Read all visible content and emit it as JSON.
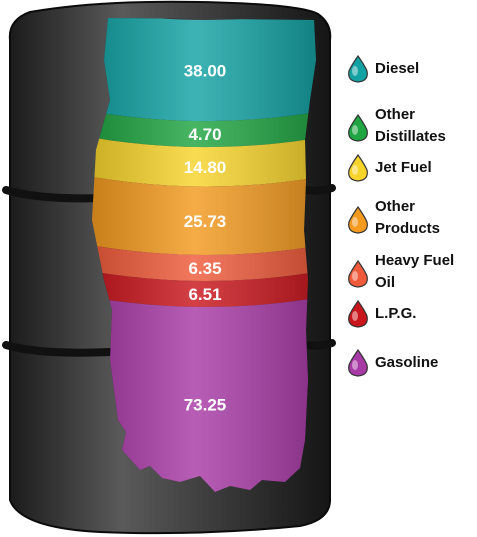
{
  "chart_data": {
    "type": "stacked-bar",
    "title": "",
    "series": [
      {
        "name": "Diesel",
        "value": 38.0,
        "label": "38.00",
        "color": "#13a2a4"
      },
      {
        "name": "Other Distillates",
        "value": 4.7,
        "label": "4.70",
        "color": "#1fa542"
      },
      {
        "name": "Jet Fuel",
        "value": 14.8,
        "label": "14.80",
        "color": "#f7d42b"
      },
      {
        "name": "Other Products",
        "value": 25.73,
        "label": "25.73",
        "color": "#f39a1f"
      },
      {
        "name": "Heavy Fuel Oil",
        "value": 6.35,
        "label": "6.35",
        "color": "#ef5a3a"
      },
      {
        "name": "L.P.G.",
        "value": 6.51,
        "label": "6.51",
        "color": "#c9161d"
      },
      {
        "name": "Gasoline",
        "value": 73.25,
        "label": "73.25",
        "color": "#a83aa6"
      }
    ],
    "legend": {
      "placement": "right",
      "items": [
        {
          "text": "Diesel",
          "color": "#13a2a4"
        },
        {
          "text": "Other\nDistillates",
          "color": "#1fa542"
        },
        {
          "text": "Jet Fuel",
          "color": "#f7d42b"
        },
        {
          "text": "Other\nProducts",
          "color": "#f39a1f"
        },
        {
          "text": "Heavy Fuel\nOil",
          "color": "#ef5a3a"
        },
        {
          "text": "L.P.G.",
          "color": "#c9161d"
        },
        {
          "text": "Gasoline",
          "color": "#a83aa6"
        }
      ]
    }
  }
}
